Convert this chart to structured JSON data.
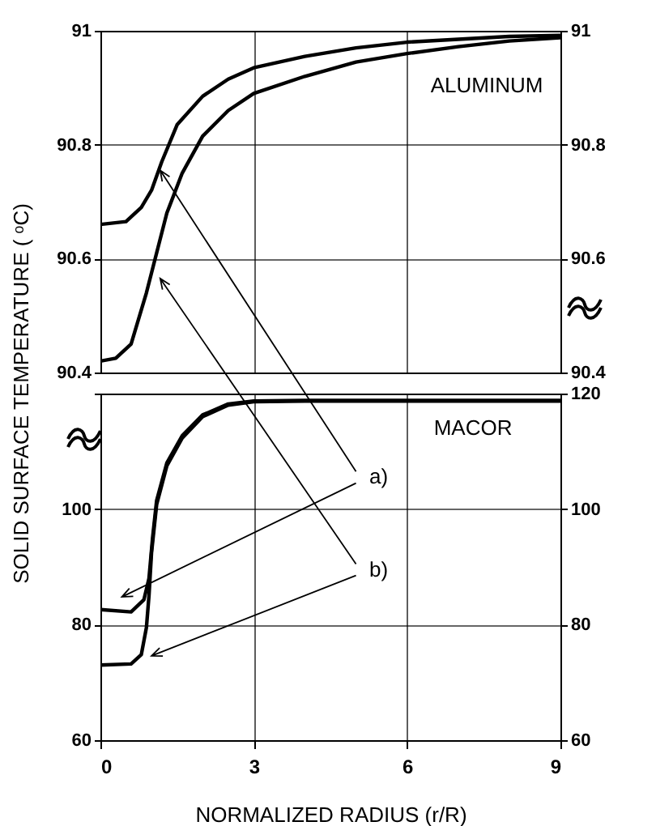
{
  "chart_data": [
    {
      "type": "line",
      "ylabel": "SOLID SURFACE TEMPERATURE ( ᵒC)",
      "xlim": [
        0,
        9
      ],
      "xticks": [
        0,
        3,
        6,
        9
      ],
      "ylim": [
        90.4,
        91
      ],
      "yticks": [
        90.4,
        90.6,
        90.8,
        91
      ],
      "y2lim": [
        90.4,
        91
      ],
      "y2ticks": [
        90.4,
        90.6,
        90.8,
        91
      ],
      "tick_labels": "y",
      "grid": true,
      "legend": false,
      "line_style": "solid",
      "marker": "none",
      "annotations": [
        "ALUMINUM"
      ],
      "series": [
        {
          "color": "#000000",
          "x": [
            0,
            0.5,
            0.8,
            1,
            1.2,
            1.5,
            2,
            2.5,
            3,
            4,
            5,
            6,
            7,
            8,
            9
          ],
          "values": [
            90.66,
            90.665,
            90.69,
            90.72,
            90.77,
            90.835,
            90.885,
            90.915,
            90.935,
            90.955,
            90.97,
            90.98,
            90.985,
            90.99,
            90.992
          ]
        },
        {
          "color": "#000000",
          "x": [
            0,
            0.3,
            0.6,
            0.9,
            1.1,
            1.3,
            1.6,
            2,
            2.5,
            3,
            4,
            5,
            6,
            7,
            8,
            9
          ],
          "values": [
            90.42,
            90.425,
            90.45,
            90.54,
            90.61,
            90.68,
            90.75,
            90.815,
            90.86,
            90.89,
            90.92,
            90.945,
            90.96,
            90.972,
            90.982,
            90.988
          ]
        }
      ]
    },
    {
      "type": "line",
      "xlabel": "NORMALIZED RADIUS (r/R)",
      "xlim": [
        0,
        9
      ],
      "xticks": [
        0,
        3,
        6,
        9
      ],
      "ylim": [
        60,
        120
      ],
      "yticks": [
        60,
        80,
        100,
        {
          "value": 120,
          "label": null
        }
      ],
      "y2lim": [
        60,
        120
      ],
      "y2ticks": [
        60,
        80,
        100,
        120
      ],
      "grid": true,
      "legend": false,
      "line_style": "solid",
      "marker": "none",
      "annotations": [
        "MACOR",
        "a)",
        "b)"
      ],
      "series": [
        {
          "color": "#000000",
          "x": [
            0,
            0.6,
            0.85,
            0.95,
            1.02,
            1.1,
            1.3,
            1.6,
            2,
            2.5,
            3,
            4,
            6,
            9
          ],
          "values": [
            82.6,
            82.2,
            84.3,
            88,
            95,
            101.5,
            108,
            112.7,
            116.3,
            118.2,
            118.7,
            118.8,
            118.8,
            118.8
          ]
        },
        {
          "color": "#000000",
          "x": [
            0,
            0.6,
            0.8,
            0.9,
            0.95,
            1,
            1.1,
            1.3,
            1.6,
            2,
            2.5,
            3,
            4,
            6,
            9
          ],
          "values": [
            73,
            73.2,
            74.8,
            79.5,
            85,
            92.5,
            100.8,
            107.5,
            112.3,
            116,
            118,
            118.6,
            118.7,
            118.7,
            118.7
          ]
        }
      ]
    }
  ]
}
